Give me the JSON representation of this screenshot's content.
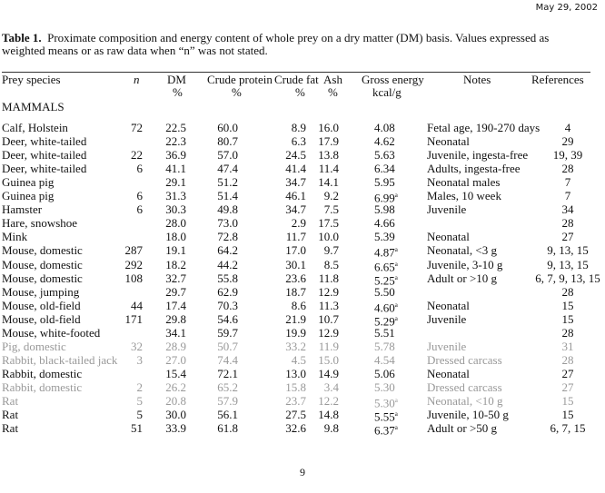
{
  "date": "May 29, 2002",
  "title_bold": "Table 1.",
  "title_text": "Proximate composition and energy content of whole prey on a dry matter (DM) basis.  Values expressed as weighted means or as raw data when “n” was not stated.",
  "headers": {
    "species": "Prey species",
    "n": "n",
    "dm": "DM",
    "dm_unit": "%",
    "cp": "Crude protein",
    "cp_unit": "%",
    "fat": "Crude fat",
    "fat_unit": "%",
    "ash": "Ash",
    "ash_unit": "%",
    "ge": "Gross energy",
    "ge_unit": "kcal/g",
    "notes": "Notes",
    "refs": "References"
  },
  "section": "MAMMALS",
  "rows": [
    {
      "species": "Calf, Holstein",
      "n": "72",
      "dm": "22.5",
      "cp": "60.0",
      "fat": "8.9",
      "ash": "16.0",
      "ge": "4.08",
      "sup": "",
      "notes": "Fetal age, 190-270 days",
      "refs": "4"
    },
    {
      "species": "Deer, white-tailed",
      "n": "",
      "dm": "22.3",
      "cp": "80.7",
      "fat": "6.3",
      "ash": "17.9",
      "ge": "4.62",
      "sup": "",
      "notes": "Neonatal",
      "refs": "29"
    },
    {
      "species": "Deer, white-tailed",
      "n": "22",
      "dm": "36.9",
      "cp": "57.0",
      "fat": "24.5",
      "ash": "13.8",
      "ge": "5.63",
      "sup": "",
      "notes": "Juvenile, ingesta-free",
      "refs": "19, 39"
    },
    {
      "species": "Deer, white-tailed",
      "n": "6",
      "dm": "41.1",
      "cp": "47.4",
      "fat": "41.4",
      "ash": "11.4",
      "ge": "6.34",
      "sup": "",
      "notes": "Adults, ingesta-free",
      "refs": "28"
    },
    {
      "species": "Guinea pig",
      "n": "",
      "dm": "29.1",
      "cp": "51.2",
      "fat": "34.7",
      "ash": "14.1",
      "ge": "5.95",
      "sup": "",
      "notes": "Neonatal males",
      "refs": "7"
    },
    {
      "species": "Guinea pig",
      "n": "6",
      "dm": "31.3",
      "cp": "51.4",
      "fat": "46.1",
      "ash": "9.2",
      "ge": "6.99",
      "sup": "a",
      "notes": "Males, 10 week",
      "refs": "7"
    },
    {
      "species": "Hamster",
      "n": "6",
      "dm": "30.3",
      "cp": "49.8",
      "fat": "34.7",
      "ash": "7.5",
      "ge": "5.98",
      "sup": "",
      "notes": "Juvenile",
      "refs": "34"
    },
    {
      "species": "Hare, snowshoe",
      "n": "",
      "dm": "28.0",
      "cp": "73.0",
      "fat": "2.9",
      "ash": "17.5",
      "ge": "4.66",
      "sup": "",
      "notes": "",
      "refs": "28"
    },
    {
      "species": "Mink",
      "n": "",
      "dm": "18.0",
      "cp": "72.8",
      "fat": "11.7",
      "ash": "10.0",
      "ge": "5.39",
      "sup": "",
      "notes": "Neonatal",
      "refs": "27"
    },
    {
      "species": "Mouse, domestic",
      "n": "287",
      "dm": "19.1",
      "cp": "64.2",
      "fat": "17.0",
      "ash": "9.7",
      "ge": "4.87",
      "sup": "a",
      "notes": "Neonatal, <3 g",
      "refs": "9, 13, 15"
    },
    {
      "species": "Mouse, domestic",
      "n": "292",
      "dm": "18.2",
      "cp": "44.2",
      "fat": "30.1",
      "ash": "8.5",
      "ge": "6.65",
      "sup": "a",
      "notes": "Juvenile, 3-10 g",
      "refs": "9, 13, 15"
    },
    {
      "species": "Mouse, domestic",
      "n": "108",
      "dm": "32.7",
      "cp": "55.8",
      "fat": "23.6",
      "ash": "11.8",
      "ge": "5.25",
      "sup": "a",
      "notes": "Adult or >10 g",
      "refs": "6, 7, 9, 13, 15"
    },
    {
      "species": "Mouse, jumping",
      "n": "",
      "dm": "29.7",
      "cp": "62.9",
      "fat": "18.7",
      "ash": "12.9",
      "ge": "5.50",
      "sup": "",
      "notes": "",
      "refs": "28"
    },
    {
      "species": "Mouse, old-field",
      "n": "44",
      "dm": "17.4",
      "cp": "70.3",
      "fat": "8.6",
      "ash": "11.3",
      "ge": "4.60",
      "sup": "a",
      "notes": "Neonatal",
      "refs": "15"
    },
    {
      "species": "Mouse, old-field",
      "n": "171",
      "dm": "29.8",
      "cp": "54.6",
      "fat": "21.9",
      "ash": "10.7",
      "ge": "5.29",
      "sup": "a",
      "notes": "Juvenile",
      "refs": "15"
    },
    {
      "species": "Mouse, white-footed",
      "n": "",
      "dm": "34.1",
      "cp": "59.7",
      "fat": "19.9",
      "ash": "12.9",
      "ge": "5.51",
      "sup": "",
      "notes": "",
      "refs": "28"
    },
    {
      "species": "Pig, domestic",
      "n": "32",
      "dm": "28.9",
      "cp": "50.7",
      "fat": "33.2",
      "ash": "11.9",
      "ge": "5.78",
      "sup": "",
      "notes": "Juvenile",
      "refs": "31",
      "faded": true
    },
    {
      "species": "Rabbit, black-tailed jack",
      "n": "3",
      "dm": "27.0",
      "cp": "74.4",
      "fat": "4.5",
      "ash": "15.0",
      "ge": "4.54",
      "sup": "",
      "notes": "Dressed carcass",
      "refs": "28",
      "faded": true
    },
    {
      "species": "Rabbit, domestic",
      "n": "",
      "dm": "15.4",
      "cp": "72.1",
      "fat": "13.0",
      "ash": "14.9",
      "ge": "5.06",
      "sup": "",
      "notes": "Neonatal",
      "refs": "27"
    },
    {
      "species": "Rabbit, domestic",
      "n": "2",
      "dm": "26.2",
      "cp": "65.2",
      "fat": "15.8",
      "ash": "3.4",
      "ge": "5.30",
      "sup": "",
      "notes": "Dressed carcass",
      "refs": "27",
      "faded": true
    },
    {
      "species": "Rat",
      "n": "5",
      "dm": "20.8",
      "cp": "57.9",
      "fat": "23.7",
      "ash": "12.2",
      "ge": "5.30",
      "sup": "a",
      "notes": "Neonatal, <10 g",
      "refs": "15",
      "faded": true
    },
    {
      "species": "Rat",
      "n": "5",
      "dm": "30.0",
      "cp": "56.1",
      "fat": "27.5",
      "ash": "14.8",
      "ge": "5.55",
      "sup": "a",
      "notes": "Juvenile, 10-50 g",
      "refs": "15"
    },
    {
      "species": "Rat",
      "n": "51",
      "dm": "33.9",
      "cp": "61.8",
      "fat": "32.6",
      "ash": "9.8",
      "ge": "6.37",
      "sup": "a",
      "notes": "Adult or >50 g",
      "refs": "6, 7, 15"
    }
  ],
  "page_number": "9"
}
